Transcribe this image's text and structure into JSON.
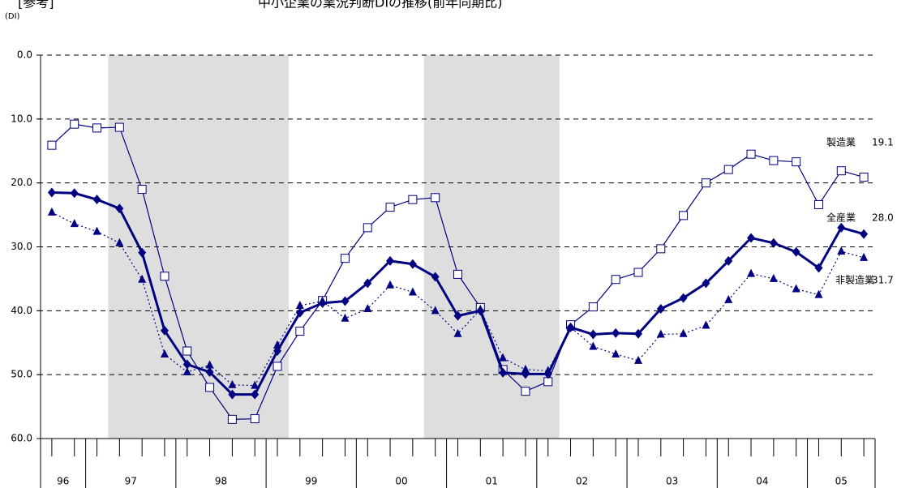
{
  "chart_data": {
    "type": "line",
    "title": "中小企業の業況判断DIの推移(前年同期比)",
    "tag": "[参考]",
    "y_label": "(DI)",
    "y_inverted": true,
    "ylim": [
      0,
      60
    ],
    "yticks": [
      {
        "value": 0,
        "label": "0.0"
      },
      {
        "value": 10,
        "label": "10.0"
      },
      {
        "value": 20,
        "label": "20.0"
      },
      {
        "value": 30,
        "label": "30.0"
      },
      {
        "value": 40,
        "label": "40.0"
      },
      {
        "value": 50,
        "label": "50.0"
      },
      {
        "value": 60,
        "label": "60.0"
      }
    ],
    "grid": true,
    "year_groups": [
      {
        "label": "96",
        "count": 2
      },
      {
        "label": "97",
        "count": 4
      },
      {
        "label": "98",
        "count": 4
      },
      {
        "label": "99",
        "count": 4
      },
      {
        "label": "00",
        "count": 4
      },
      {
        "label": "01",
        "count": 4
      },
      {
        "label": "02",
        "count": 4
      },
      {
        "label": "03",
        "count": 4
      },
      {
        "label": "04",
        "count": 4
      },
      {
        "label": "05",
        "count": 3
      }
    ],
    "series": [
      {
        "name": "製造業",
        "color": "#000080",
        "marker": "square",
        "last_label": "19.1",
        "values": [
          14.1,
          10.8,
          11.4,
          11.3,
          21.0,
          34.6,
          46.3,
          52.0,
          57.0,
          56.9,
          48.7,
          43.2,
          38.4,
          31.8,
          27.0,
          23.8,
          22.6,
          22.3,
          34.3,
          39.5,
          49.2,
          52.6,
          51.1,
          42.2,
          39.4,
          35.1,
          34.0,
          30.3,
          25.1,
          20.0,
          17.9,
          15.5,
          16.5,
          16.7,
          23.4,
          18.1,
          19.1
        ]
      },
      {
        "name": "全産業",
        "color": "#000080",
        "marker": "diamond",
        "last_label": "28.0",
        "values": [
          21.5,
          21.6,
          22.6,
          24.0,
          30.9,
          43.1,
          48.4,
          49.6,
          53.1,
          53.1,
          46.3,
          40.3,
          38.8,
          38.5,
          35.7,
          32.2,
          32.7,
          34.7,
          40.8,
          40.0,
          49.7,
          49.9,
          49.9,
          42.6,
          43.7,
          43.5,
          43.6,
          39.7,
          38.0,
          35.7,
          32.2,
          28.6,
          29.4,
          30.8,
          33.3,
          27.0,
          28.0
        ]
      },
      {
        "name": "非製造業",
        "color": "#000080",
        "marker": "triangle",
        "last_label": "31.7",
        "values": [
          24.6,
          26.4,
          27.6,
          29.4,
          35.1,
          46.8,
          49.6,
          48.5,
          51.6,
          51.7,
          45.4,
          39.2,
          38.5,
          41.2,
          39.7,
          36.0,
          37.1,
          40.0,
          43.6,
          39.8,
          47.4,
          49.2,
          49.4,
          42.6,
          45.6,
          46.8,
          47.8,
          43.7,
          43.6,
          42.3,
          38.3,
          34.2,
          35.0,
          36.6,
          37.5,
          30.7,
          31.7
        ]
      }
    ]
  }
}
